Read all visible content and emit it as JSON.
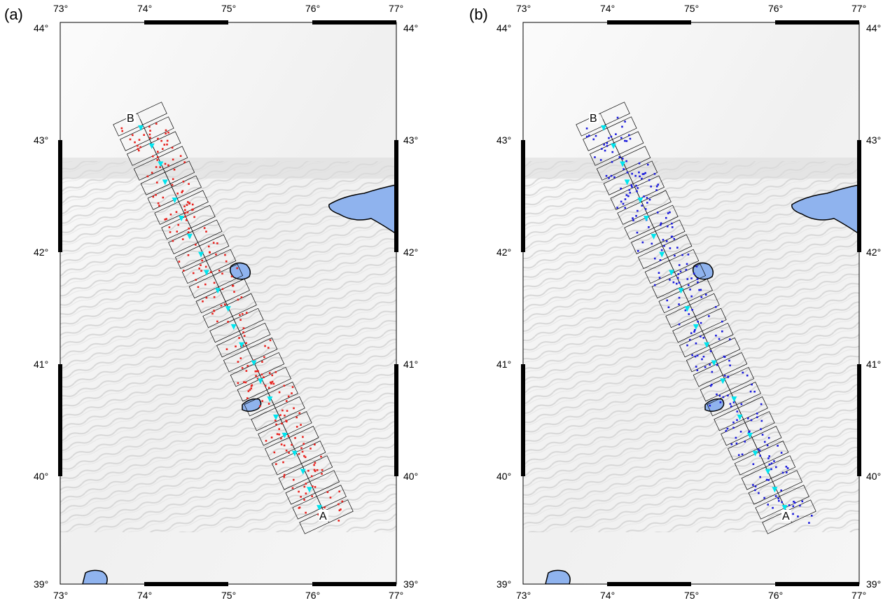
{
  "figure": {
    "panels": [
      {
        "id": "a",
        "label": "(a)",
        "point_color": "#e8201c",
        "profile_start_label": "A",
        "profile_end_label": "B"
      },
      {
        "id": "b",
        "label": "(b)",
        "point_color": "#1a1adc",
        "profile_start_label": "A",
        "profile_end_label": "B"
      }
    ],
    "lon_ticks": [
      "73°",
      "74°",
      "75°",
      "76°",
      "77°"
    ],
    "lat_ticks": [
      "44°",
      "43°",
      "42°",
      "41°",
      "40°",
      "39°"
    ],
    "colors": {
      "station_triangle": "#00e5ef",
      "lake_fill": "#8fb3ee",
      "relief_light": "#f7f7f7",
      "relief_shade": "#c9c9c9",
      "frame": "#000000"
    },
    "extent": {
      "lon_min": 73,
      "lon_max": 77,
      "lat_min": 39,
      "lat_max": 44
    }
  }
}
